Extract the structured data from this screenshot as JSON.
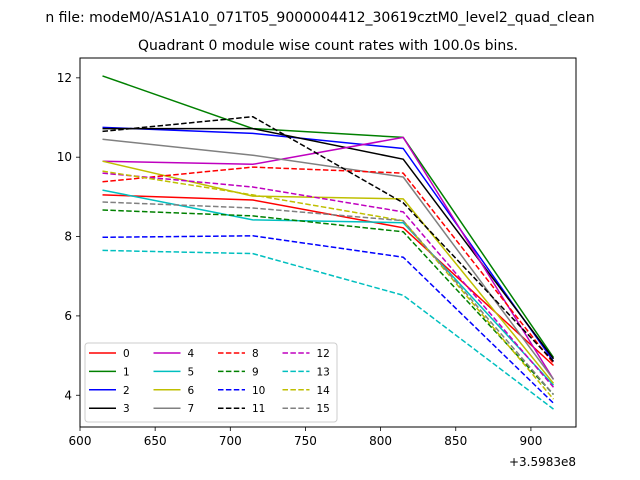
{
  "chart_data": {
    "type": "line",
    "suptitle": "n file: modeM0/AS1A10_071T05_9000004412_30619cztM0_level2_quad_clean",
    "title": "Quadrant 0 module wise count rates with 100.0s bins.",
    "xlabel": "",
    "ylabel": "",
    "x_offset_label": "+3.5983e8",
    "xlim": [
      600,
      930
    ],
    "ylim": [
      3.2,
      12.5
    ],
    "xticks": [
      600,
      650,
      700,
      750,
      800,
      850,
      900
    ],
    "yticks": [
      4,
      6,
      8,
      10,
      12
    ],
    "x": [
      615,
      715,
      815,
      915
    ],
    "series": [
      {
        "name": "0",
        "color": "#ff0000",
        "dash": "solid",
        "values": [
          9.05,
          8.92,
          8.22,
          4.75
        ]
      },
      {
        "name": "1",
        "color": "#008000",
        "dash": "solid",
        "values": [
          12.05,
          10.72,
          10.5,
          4.95
        ]
      },
      {
        "name": "2",
        "color": "#0000ff",
        "dash": "solid",
        "values": [
          10.75,
          10.6,
          10.22,
          4.85
        ]
      },
      {
        "name": "3",
        "color": "#000000",
        "dash": "solid",
        "values": [
          10.72,
          10.72,
          9.95,
          4.92
        ]
      },
      {
        "name": "4",
        "color": "#bf00bf",
        "dash": "solid",
        "values": [
          9.9,
          9.82,
          10.5,
          4.4
        ]
      },
      {
        "name": "5",
        "color": "#00bfbf",
        "dash": "solid",
        "values": [
          9.17,
          8.42,
          8.35,
          4.25
        ]
      },
      {
        "name": "6",
        "color": "#bfbf00",
        "dash": "solid",
        "values": [
          9.9,
          9.02,
          8.95,
          4.3
        ]
      },
      {
        "name": "7",
        "color": "#808080",
        "dash": "solid",
        "values": [
          10.45,
          10.05,
          9.5,
          4.4
        ]
      },
      {
        "name": "8",
        "color": "#ff0000",
        "dash": "dashed",
        "values": [
          9.38,
          9.75,
          9.6,
          4.8
        ]
      },
      {
        "name": "9",
        "color": "#008000",
        "dash": "dashed",
        "values": [
          8.67,
          8.52,
          8.12,
          4.02
        ]
      },
      {
        "name": "10",
        "color": "#0000ff",
        "dash": "dashed",
        "values": [
          7.98,
          8.02,
          7.48,
          3.8
        ]
      },
      {
        "name": "11",
        "color": "#000000",
        "dash": "dashed",
        "values": [
          10.65,
          11.02,
          8.85,
          4.85
        ]
      },
      {
        "name": "12",
        "color": "#bf00bf",
        "dash": "dashed",
        "values": [
          9.6,
          9.25,
          8.62,
          4.2
        ]
      },
      {
        "name": "13",
        "color": "#00bfbf",
        "dash": "dashed",
        "values": [
          7.65,
          7.57,
          6.52,
          3.65
        ]
      },
      {
        "name": "14",
        "color": "#bfbf00",
        "dash": "dashed",
        "values": [
          9.65,
          9.05,
          8.4,
          3.9
        ]
      },
      {
        "name": "15",
        "color": "#808080",
        "dash": "dashed",
        "values": [
          8.87,
          8.72,
          8.4,
          4.02
        ]
      }
    ],
    "legend": {
      "location": "lower-left",
      "columns": 4
    },
    "grid": false
  }
}
